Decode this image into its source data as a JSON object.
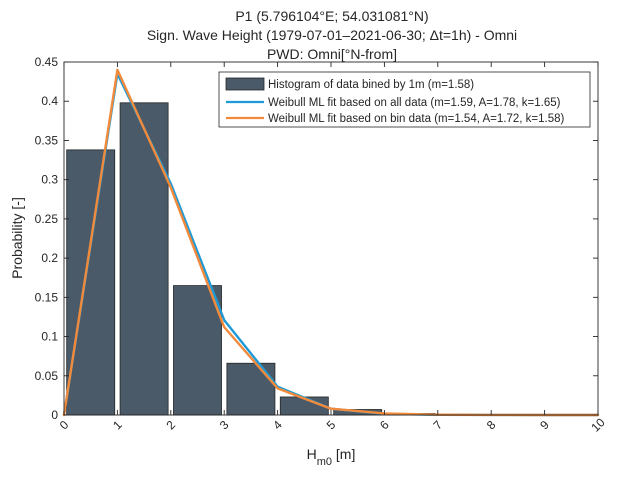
{
  "chart_data": {
    "type": "bar",
    "title_lines": [
      "P1 (5.796104°E; 54.031081°N)",
      "Sign. Wave Height  (1979-07-01–2021-06-30; Δt=1h) - Omni",
      "PWD: Omni[°N-from]"
    ],
    "xlabel_main": "H",
    "xlabel_sub": "m0",
    "xlabel_unit": " [m]",
    "ylabel": "Probability [-]",
    "xlim": [
      0,
      10
    ],
    "ylim": [
      0,
      0.45
    ],
    "x_ticks": [
      0,
      1,
      2,
      3,
      4,
      5,
      6,
      7,
      8,
      9,
      10
    ],
    "y_ticks": [
      0,
      0.05,
      0.1,
      0.15,
      0.2,
      0.25,
      0.3,
      0.35,
      0.4,
      0.45
    ],
    "y_tick_labels": [
      "0",
      "0.05",
      "0.1",
      "0.15",
      "0.2",
      "0.25",
      "0.3",
      "0.35",
      "0.4",
      "0.45"
    ],
    "histogram": {
      "name": "Histogram of data bined by 1m (m=1.58)",
      "bin_edges": [
        0,
        1,
        2,
        3,
        4,
        5,
        6,
        7,
        8,
        9,
        10
      ],
      "values": [
        0.338,
        0.398,
        0.165,
        0.066,
        0.023,
        0.007,
        0.002,
        0.0005,
        0.0002,
        0.0001
      ],
      "color": "#4a5a68"
    },
    "series": [
      {
        "name": "Weibull ML fit based on all data (m=1.59, A=1.78, k=1.65)",
        "color": "#1f9ad6",
        "x": [
          0,
          1,
          2,
          3,
          4,
          5,
          6,
          7,
          8,
          9,
          10
        ],
        "values": [
          0,
          0.435,
          0.295,
          0.121,
          0.036,
          0.008,
          0.0015,
          0.0003,
          0.0001,
          0,
          0
        ]
      },
      {
        "name": "Weibull ML fit based on bin data (m=1.54, A=1.72, k=1.58)",
        "color": "#f28a3c",
        "x": [
          0,
          1,
          2,
          3,
          4,
          5,
          6,
          7,
          8,
          9,
          10
        ],
        "values": [
          0,
          0.44,
          0.29,
          0.112,
          0.034,
          0.008,
          0.002,
          0.0004,
          0.0001,
          0,
          0
        ]
      }
    ],
    "legend_position": "top-right",
    "grid": false
  }
}
